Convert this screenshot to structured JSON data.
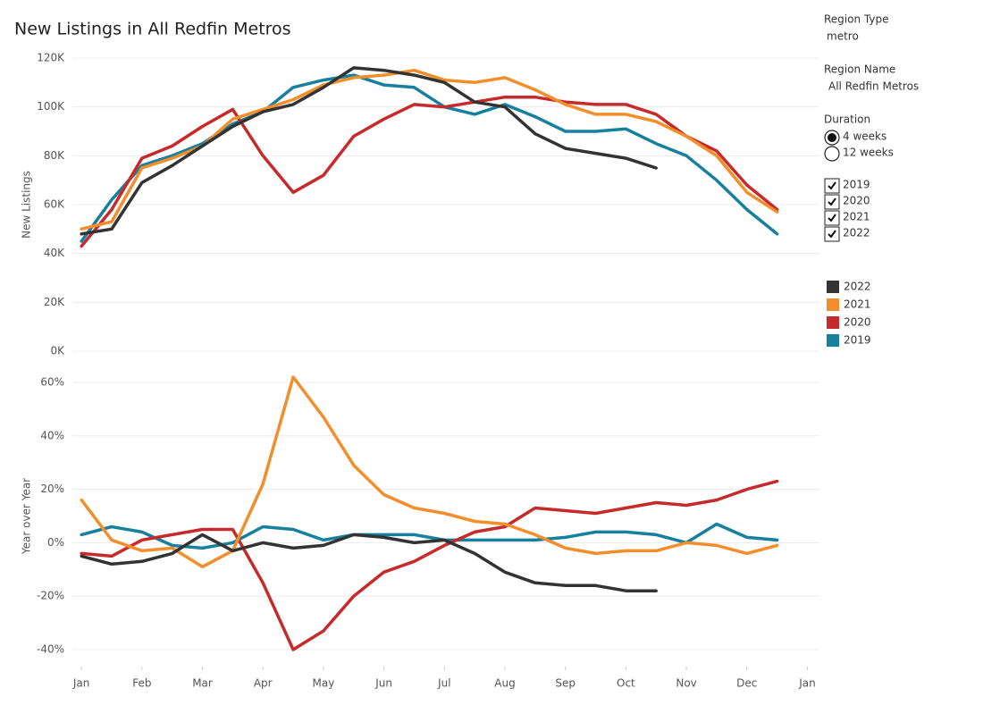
{
  "title": "New Listings in  All Redfin Metros",
  "chart_data": [
    {
      "type": "line",
      "y_label": "New Listings",
      "x": [
        0,
        0.5,
        1,
        1.5,
        2,
        2.5,
        3,
        3.5,
        4,
        4.5,
        5,
        5.5,
        6,
        6.5,
        7,
        7.5,
        8,
        8.5,
        9,
        9.5,
        10,
        10.5,
        11,
        11.5
      ],
      "xlim": [
        -0.15,
        12.2
      ],
      "ylim": [
        0,
        120000
      ],
      "yticks": [
        {
          "value": 0,
          "label": "0K"
        },
        {
          "value": 20000,
          "label": "20K"
        },
        {
          "value": 40000,
          "label": "40K"
        },
        {
          "value": 60000,
          "label": "60K"
        },
        {
          "value": 80000,
          "label": "80K"
        },
        {
          "value": 100000,
          "label": "100K"
        },
        {
          "value": 120000,
          "label": "120K"
        }
      ],
      "grid": true,
      "series": [
        {
          "name": "2022",
          "color": "#333333",
          "values": [
            48000,
            50000,
            69000,
            76000,
            84000,
            92000,
            98000,
            101000,
            108000,
            116000,
            115000,
            113000,
            110000,
            102000,
            100000,
            89000,
            83000,
            81000,
            79000,
            75000,
            null,
            null,
            null,
            null
          ]
        },
        {
          "name": "2021",
          "color": "#f28e2b",
          "values": [
            50000,
            53000,
            75000,
            79000,
            84000,
            95000,
            99000,
            103000,
            109000,
            112000,
            113000,
            115000,
            111000,
            110000,
            112000,
            107000,
            101000,
            97000,
            97000,
            94000,
            88000,
            80000,
            65000,
            57000
          ]
        },
        {
          "name": "2020",
          "color": "#c62a2a",
          "values": [
            43000,
            58000,
            79000,
            84000,
            92000,
            99000,
            80000,
            65000,
            72000,
            88000,
            95000,
            101000,
            100000,
            102000,
            104000,
            104000,
            102000,
            101000,
            101000,
            97000,
            88000,
            82000,
            68000,
            58000
          ]
        },
        {
          "name": "2019",
          "color": "#17809e",
          "values": [
            45000,
            62000,
            76000,
            80000,
            85000,
            93000,
            98000,
            108000,
            111000,
            113000,
            109000,
            108000,
            100000,
            97000,
            101000,
            96000,
            90000,
            90000,
            91000,
            85000,
            80000,
            70000,
            58000,
            48000
          ]
        }
      ]
    },
    {
      "type": "line",
      "y_label": "Year over Year",
      "x": [
        0,
        0.5,
        1,
        1.5,
        2,
        2.5,
        3,
        3.5,
        4,
        4.5,
        5,
        5.5,
        6,
        6.5,
        7,
        7.5,
        8,
        8.5,
        9,
        9.5,
        10,
        10.5,
        11,
        11.5
      ],
      "xlim": [
        -0.15,
        12.2
      ],
      "xticks": [
        {
          "value": 0,
          "label": "Jan"
        },
        {
          "value": 1,
          "label": "Feb"
        },
        {
          "value": 2,
          "label": "Mar"
        },
        {
          "value": 3,
          "label": "Apr"
        },
        {
          "value": 4,
          "label": "May"
        },
        {
          "value": 5,
          "label": "Jun"
        },
        {
          "value": 6,
          "label": "Jul"
        },
        {
          "value": 7,
          "label": "Aug"
        },
        {
          "value": 8,
          "label": "Sep"
        },
        {
          "value": 9,
          "label": "Oct"
        },
        {
          "value": 10,
          "label": "Nov"
        },
        {
          "value": 11,
          "label": "Dec"
        },
        {
          "value": 12,
          "label": "Jan"
        }
      ],
      "ylim": [
        -45,
        65
      ],
      "yticks": [
        {
          "value": -40,
          "label": "-40%"
        },
        {
          "value": -20,
          "label": "-20%"
        },
        {
          "value": 0,
          "label": "0%"
        },
        {
          "value": 20,
          "label": "20%"
        },
        {
          "value": 40,
          "label": "40%"
        },
        {
          "value": 60,
          "label": "60%"
        }
      ],
      "grid": true,
      "series": [
        {
          "name": "2022",
          "color": "#333333",
          "values": [
            -5,
            -8,
            -7,
            -4,
            3,
            -3,
            0,
            -2,
            -1,
            3,
            2,
            0,
            1,
            -4,
            -11,
            -15,
            -16,
            -16,
            -18,
            -18,
            null,
            null,
            null,
            null
          ]
        },
        {
          "name": "2021",
          "color": "#f28e2b",
          "values": [
            16,
            1,
            -3,
            -2,
            -9,
            -3,
            22,
            62,
            47,
            29,
            18,
            13,
            11,
            8,
            7,
            3,
            -2,
            -4,
            -3,
            -3,
            0,
            -1,
            -4,
            -1
          ]
        },
        {
          "name": "2020",
          "color": "#c62a2a",
          "values": [
            -4,
            -5,
            1,
            3,
            5,
            5,
            -15,
            -40,
            -33,
            -20,
            -11,
            -7,
            -1,
            4,
            6,
            13,
            12,
            11,
            13,
            15,
            14,
            16,
            20,
            23
          ]
        },
        {
          "name": "2019",
          "color": "#17809e",
          "values": [
            3,
            6,
            4,
            -1,
            -2,
            0,
            6,
            5,
            1,
            3,
            3,
            3,
            1,
            1,
            1,
            1,
            2,
            4,
            4,
            3,
            0,
            7,
            2,
            1
          ]
        }
      ]
    }
  ],
  "filters": {
    "region_type": {
      "label": "Region Type",
      "value": "metro"
    },
    "region_name": {
      "label": "Region Name",
      "value": "All Redfin Metros"
    },
    "duration": {
      "label": "Duration",
      "options": [
        "4 weeks",
        "12 weeks"
      ],
      "selected": 0
    },
    "years": [
      {
        "label": "2019",
        "checked": true
      },
      {
        "label": "2020",
        "checked": true
      },
      {
        "label": "2021",
        "checked": true
      },
      {
        "label": "2022",
        "checked": true
      }
    ]
  }
}
